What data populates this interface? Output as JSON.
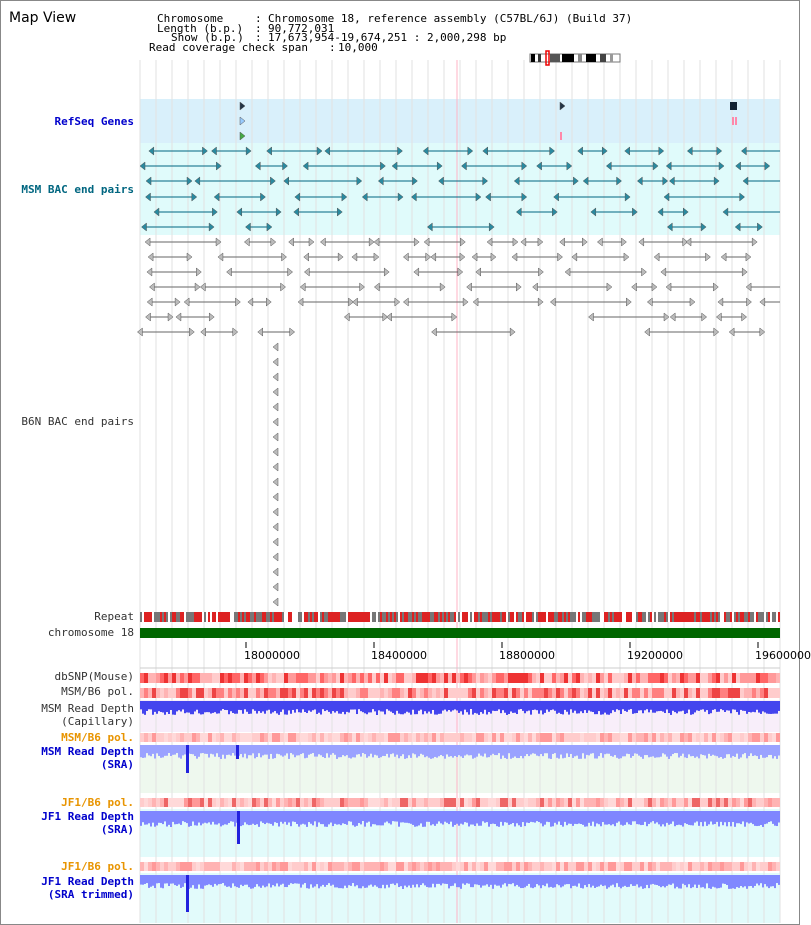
{
  "page": {
    "title": "Map View"
  },
  "info": {
    "chromosome_label": "Chromosome",
    "chromosome_value": "Chromosome 18, reference assembly (C57BL/6J) (Build 37)",
    "length_label": "Length (b.p.)",
    "length_value": "90,772,031",
    "show_label": "Show (b.p.)",
    "show_value": "17,673,954-19,674,251 : 2,000,298 bp",
    "span_label": "Read coverage check span",
    "span_value": "10,000"
  },
  "tracks": {
    "refseq": "RefSeq Genes",
    "msm_bac": "MSM BAC end pairs",
    "b6n_bac": "B6N BAC end pairs",
    "repeat": "Repeat",
    "chromosome": "chromosome 18",
    "dbsnp": "dbSNP(Mouse)",
    "msm_b6_pol": "MSM/B6 pol.",
    "msm_depth_cap_1": "MSM Read Depth",
    "msm_depth_cap_2": "(Capillary)",
    "msm_b6_pol_sra": "MSM/B6 pol.",
    "msm_depth_sra_1": "MSM Read Depth",
    "msm_depth_sra_2": "(SRA)",
    "jf1_b6_pol_1": "JF1/B6 pol.",
    "jf1_depth_sra_1": "JF1 Read Depth",
    "jf1_depth_sra_2": "(SRA)",
    "jf1_b6_pol_2": "JF1/B6 pol.",
    "jf1_depth_trim_1": "JF1 Read Depth",
    "jf1_depth_trim_2": "(SRA trimmed)"
  },
  "axis": {
    "ticks": [
      "18000000",
      "18400000",
      "18800000",
      "19200000",
      "19600000"
    ]
  },
  "colors": {
    "refseq_bg": "#d9f0fb",
    "msm_bac_bg": "#e0fbfb",
    "chromosome_bar": "#006600",
    "depth_blue": "#3333ee",
    "pol_red": "#ee4444"
  }
}
